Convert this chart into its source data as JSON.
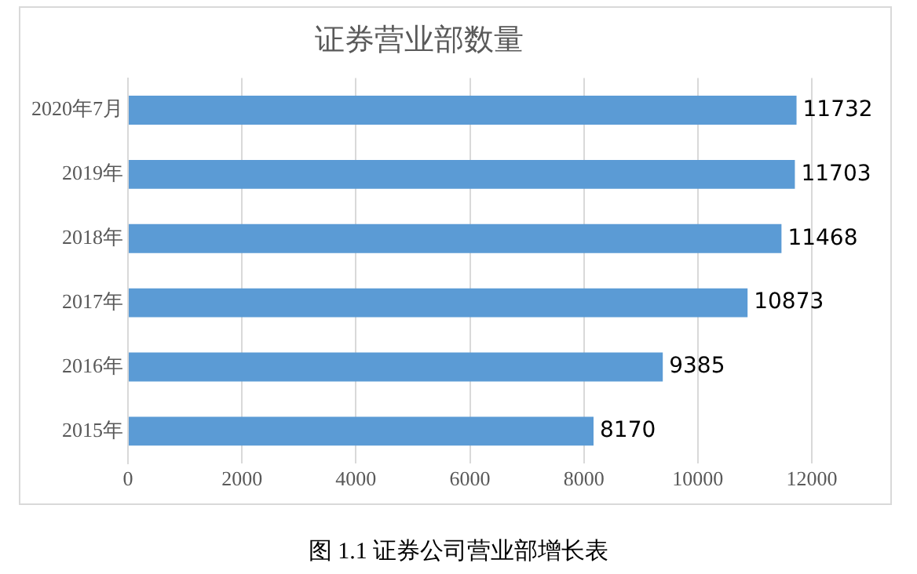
{
  "chart_data": {
    "type": "bar",
    "orientation": "horizontal",
    "title": "证券营业部数量",
    "categories": [
      "2020年7月",
      "2019年",
      "2018年",
      "2017年",
      "2016年",
      "2015年"
    ],
    "values": [
      11732,
      11703,
      11468,
      10873,
      9385,
      8170
    ],
    "color": "#5b9bd5",
    "xlim": [
      0,
      12000
    ],
    "xticks": [
      0,
      2000,
      4000,
      6000,
      8000,
      10000,
      12000
    ],
    "grid": "x",
    "legend": false,
    "data_labels": true,
    "annotations": [
      "图 1.1 证券公司营业部增长表"
    ]
  }
}
